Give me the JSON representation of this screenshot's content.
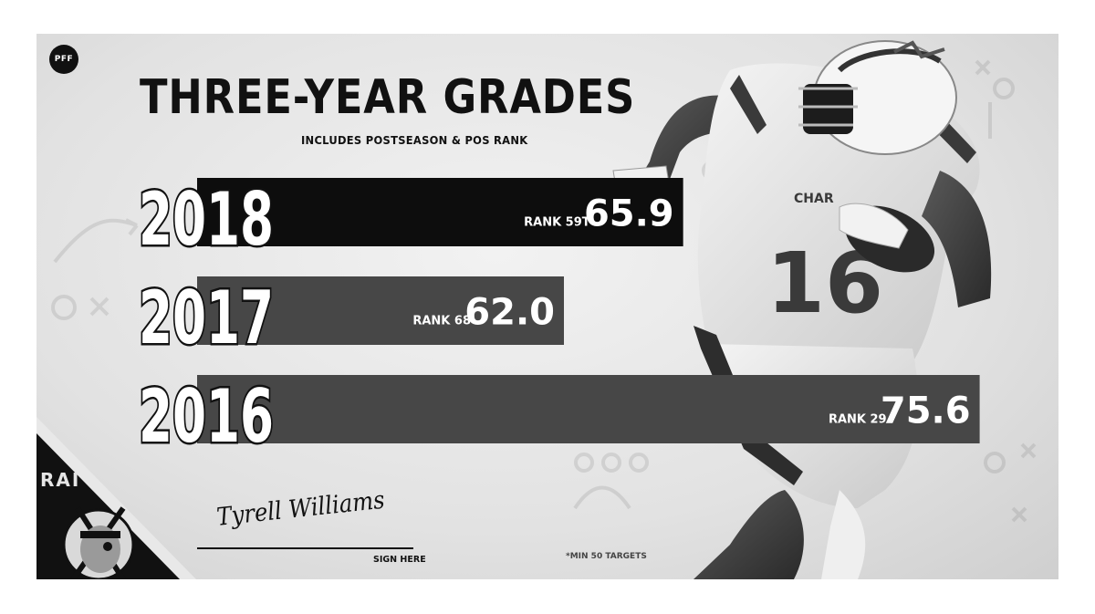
{
  "logo": {
    "text": "PFF"
  },
  "title": "THREE-YEAR GRADES",
  "subtitle": "INCLUDES POSTSEASON & POS RANK",
  "chart_data": {
    "type": "bar",
    "orientation": "horizontal",
    "title": "THREE-YEAR GRADES",
    "subtitle": "INCLUDES POSTSEASON & POS RANK",
    "categories": [
      "2018",
      "2017",
      "2016"
    ],
    "values": [
      65.9,
      62.0,
      75.6
    ],
    "value_labels": [
      "65.9",
      "62.0",
      "75.6"
    ],
    "ranks": [
      "RANK 59T",
      "RANK 68",
      "RANK 29"
    ],
    "bar_colors": [
      "#0d0d0d",
      "#474747",
      "#474747"
    ],
    "grid": false,
    "legend": "none"
  },
  "player": {
    "jersey_number": "16",
    "jersey_team": "CHAR"
  },
  "team_corner": {
    "text": "RAI"
  },
  "signature": {
    "name": "Tyrell Williams",
    "caption": "SIGN HERE"
  },
  "footnote": "*MIN 50 TARGETS"
}
